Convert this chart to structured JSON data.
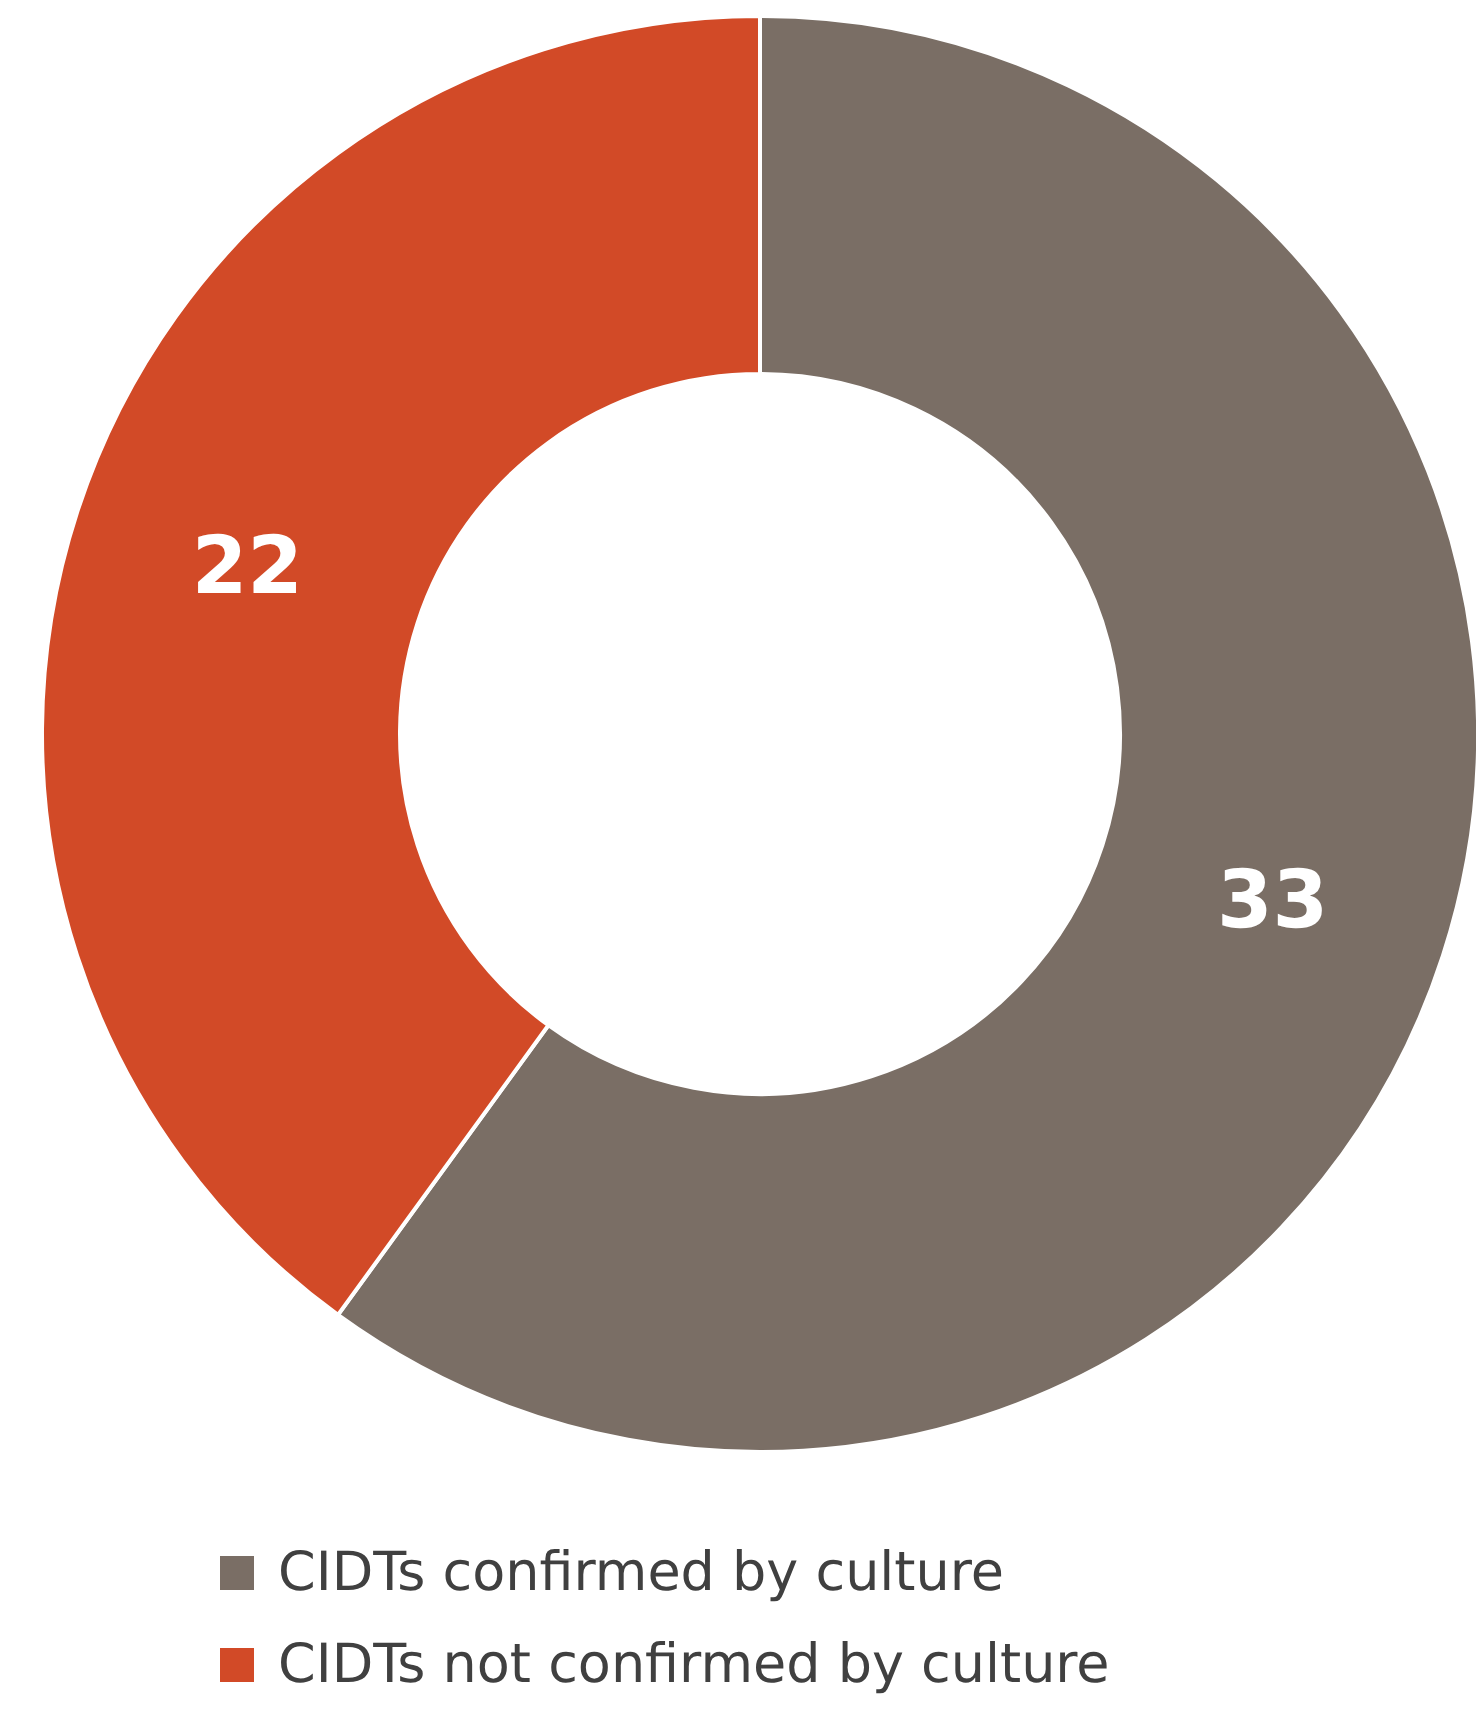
{
  "chart_data": {
    "type": "donut",
    "categories": [
      "CIDTs confirmed by culture",
      "CIDTs not confirmed by culture"
    ],
    "values": [
      33,
      22
    ],
    "colors": [
      "#7a6e65",
      "#d24a27"
    ],
    "data_labels": true,
    "legend": "bottom"
  }
}
